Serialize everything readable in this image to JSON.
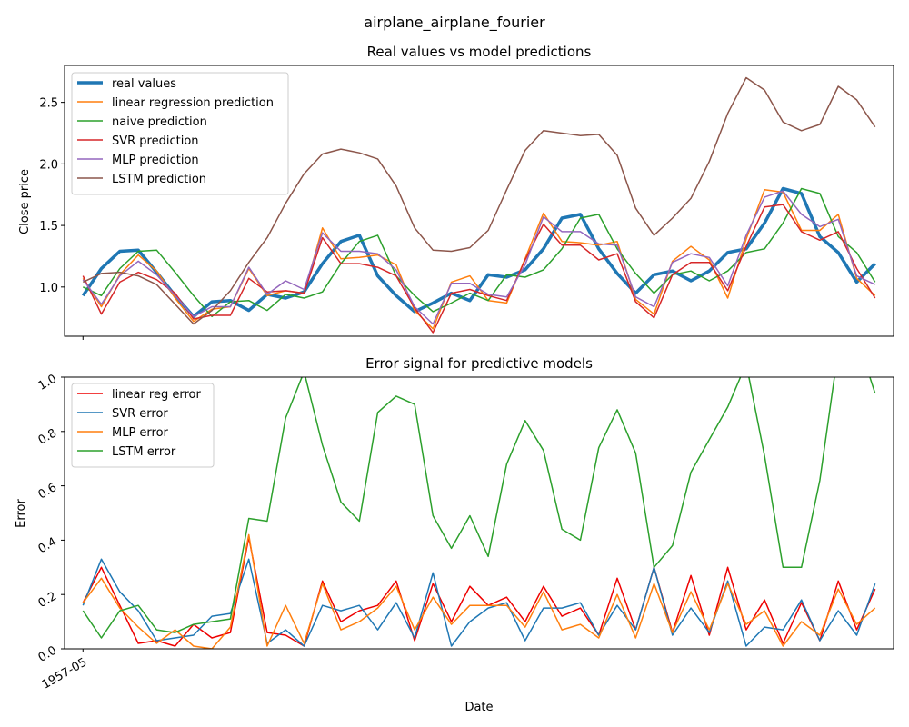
{
  "figure": {
    "suptitle": "airplane_airplane_fourier"
  },
  "chart_data": [
    {
      "type": "line",
      "title": "Real values vs model predictions",
      "xlabel": "",
      "ylabel": "Close price",
      "ylim": [
        0.6,
        2.8
      ],
      "yticks": [
        1.0,
        1.5,
        2.0,
        2.5
      ],
      "ytick_labels": [
        "1.0",
        "1.5",
        "2.0",
        "2.5"
      ],
      "xticks": [
        0
      ],
      "xtick_labels": [],
      "legend_position": "upper-left",
      "grid": false,
      "x": [
        0,
        1,
        2,
        3,
        4,
        5,
        6,
        7,
        8,
        9,
        10,
        11,
        12,
        13,
        14,
        15,
        16,
        17,
        18,
        19,
        20,
        21,
        22,
        23,
        24,
        25,
        26,
        27,
        28,
        29,
        30,
        31,
        32,
        33,
        34,
        35,
        36,
        37,
        38,
        39,
        40,
        41,
        42,
        43
      ],
      "series": [
        {
          "name": "real values",
          "color": "#1f77b4",
          "width": 3.5,
          "values": [
            0.93,
            1.15,
            1.29,
            1.3,
            1.12,
            0.93,
            0.76,
            0.88,
            0.89,
            0.81,
            0.94,
            0.91,
            0.96,
            1.19,
            1.37,
            1.42,
            1.09,
            0.93,
            0.8,
            0.87,
            0.95,
            0.89,
            1.1,
            1.08,
            1.14,
            1.31,
            1.56,
            1.59,
            1.31,
            1.11,
            0.95,
            1.1,
            1.13,
            1.05,
            1.13,
            1.28,
            1.31,
            1.52,
            1.8,
            1.76,
            1.41,
            1.28,
            1.04,
            1.19
          ]
        },
        {
          "name": "linear regression prediction",
          "color": "#ff7f0e",
          "width": 1.5,
          "values": [
            1.07,
            0.84,
            1.1,
            1.26,
            1.13,
            0.91,
            0.72,
            0.82,
            0.84,
            1.15,
            0.93,
            0.97,
            0.95,
            1.48,
            1.23,
            1.24,
            1.26,
            1.18,
            0.81,
            0.66,
            1.04,
            1.09,
            0.89,
            0.87,
            1.23,
            1.6,
            1.37,
            1.36,
            1.34,
            1.37,
            0.9,
            0.78,
            1.21,
            1.33,
            1.22,
            0.91,
            1.39,
            1.79,
            1.77,
            1.46,
            1.46,
            1.59,
            1.07,
            0.93
          ]
        },
        {
          "name": "naive prediction",
          "color": "#2ca02c",
          "width": 1.5,
          "values": [
            1.0,
            0.93,
            1.15,
            1.29,
            1.3,
            1.12,
            0.93,
            0.76,
            0.88,
            0.89,
            0.81,
            0.94,
            0.91,
            0.96,
            1.19,
            1.37,
            1.42,
            1.09,
            0.93,
            0.8,
            0.87,
            0.95,
            0.89,
            1.1,
            1.08,
            1.14,
            1.31,
            1.56,
            1.59,
            1.31,
            1.11,
            0.95,
            1.1,
            1.13,
            1.05,
            1.13,
            1.28,
            1.31,
            1.52,
            1.8,
            1.76,
            1.41,
            1.28,
            1.04
          ]
        },
        {
          "name": "SVR prediction",
          "color": "#d62728",
          "width": 1.5,
          "values": [
            1.09,
            0.78,
            1.04,
            1.12,
            1.06,
            0.95,
            0.74,
            0.77,
            0.77,
            1.07,
            0.96,
            0.97,
            0.95,
            1.4,
            1.19,
            1.19,
            1.16,
            1.09,
            0.83,
            0.63,
            0.95,
            0.98,
            0.93,
            0.89,
            1.22,
            1.51,
            1.34,
            1.34,
            1.22,
            1.27,
            0.88,
            0.75,
            1.1,
            1.2,
            1.2,
            0.97,
            1.33,
            1.65,
            1.67,
            1.45,
            1.38,
            1.45,
            1.15,
            0.91
          ]
        },
        {
          "name": "MLP prediction",
          "color": "#9467bd",
          "width": 1.5,
          "values": [
            1.06,
            0.86,
            1.09,
            1.21,
            1.1,
            0.93,
            0.76,
            0.84,
            0.84,
            1.16,
            0.94,
            1.05,
            0.98,
            1.44,
            1.29,
            1.29,
            1.27,
            1.14,
            0.84,
            0.7,
            1.03,
            1.03,
            0.94,
            0.92,
            1.18,
            1.57,
            1.45,
            1.45,
            1.35,
            1.34,
            0.92,
            0.84,
            1.2,
            1.27,
            1.24,
            1.01,
            1.42,
            1.73,
            1.78,
            1.59,
            1.49,
            1.55,
            1.09,
            1.02
          ]
        },
        {
          "name": "LSTM prediction",
          "color": "#8c564b",
          "width": 1.5,
          "values": [
            1.04,
            1.11,
            1.12,
            1.09,
            1.02,
            0.86,
            0.7,
            0.81,
            0.97,
            1.2,
            1.4,
            1.68,
            1.92,
            2.08,
            2.12,
            2.09,
            2.04,
            1.82,
            1.48,
            1.3,
            1.29,
            1.32,
            1.46,
            1.79,
            2.11,
            2.27,
            2.25,
            2.23,
            2.24,
            2.07,
            1.64,
            1.42,
            1.56,
            1.72,
            2.02,
            2.41,
            2.7,
            2.6,
            2.34,
            2.27,
            2.32,
            2.63,
            2.52,
            2.3
          ]
        }
      ]
    },
    {
      "type": "line",
      "title": "Error signal for predictive models",
      "xlabel": "Date",
      "ylabel": "Error",
      "ylim": [
        0.0,
        1.0
      ],
      "yticks": [
        0.0,
        0.2,
        0.4,
        0.6,
        0.8,
        1.0
      ],
      "ytick_labels": [
        "0.0",
        "0.2",
        "0.4",
        "0.6",
        "0.8",
        "1.0"
      ],
      "xticks": [
        0
      ],
      "xtick_labels": [
        "1957-05"
      ],
      "legend_position": "upper-left",
      "grid": false,
      "x": [
        0,
        1,
        2,
        3,
        4,
        5,
        6,
        7,
        8,
        9,
        10,
        11,
        12,
        13,
        14,
        15,
        16,
        17,
        18,
        19,
        20,
        21,
        22,
        23,
        24,
        25,
        26,
        27,
        28,
        29,
        30,
        31,
        32,
        33,
        34,
        35,
        36,
        37,
        38,
        39,
        40,
        41,
        42,
        43
      ],
      "series": [
        {
          "name": "linear reg error",
          "color": "#ee0000",
          "width": 1.5,
          "values": [
            0.17,
            0.3,
            0.16,
            0.02,
            0.03,
            0.01,
            0.09,
            0.04,
            0.06,
            0.41,
            0.06,
            0.05,
            0.01,
            0.25,
            0.1,
            0.14,
            0.16,
            0.25,
            0.03,
            0.24,
            0.1,
            0.23,
            0.16,
            0.19,
            0.1,
            0.23,
            0.12,
            0.15,
            0.05,
            0.26,
            0.07,
            0.3,
            0.06,
            0.27,
            0.05,
            0.3,
            0.07,
            0.18,
            0.02,
            0.17,
            0.03,
            0.25,
            0.07,
            0.22
          ]
        },
        {
          "name": "SVR error",
          "color": "#1f77b4",
          "width": 1.5,
          "values": [
            0.16,
            0.33,
            0.21,
            0.14,
            0.03,
            0.04,
            0.05,
            0.12,
            0.13,
            0.33,
            0.02,
            0.07,
            0.01,
            0.16,
            0.14,
            0.16,
            0.07,
            0.17,
            0.04,
            0.28,
            0.01,
            0.1,
            0.15,
            0.17,
            0.03,
            0.15,
            0.15,
            0.17,
            0.05,
            0.16,
            0.07,
            0.3,
            0.05,
            0.15,
            0.06,
            0.25,
            0.01,
            0.08,
            0.07,
            0.18,
            0.03,
            0.14,
            0.05,
            0.24
          ]
        },
        {
          "name": "MLP error",
          "color": "#ff7f0e",
          "width": 1.5,
          "values": [
            0.17,
            0.26,
            0.15,
            0.08,
            0.02,
            0.07,
            0.01,
            0.0,
            0.08,
            0.42,
            0.01,
            0.16,
            0.02,
            0.24,
            0.07,
            0.1,
            0.15,
            0.23,
            0.07,
            0.19,
            0.09,
            0.16,
            0.16,
            0.16,
            0.08,
            0.21,
            0.07,
            0.09,
            0.04,
            0.2,
            0.04,
            0.24,
            0.06,
            0.21,
            0.07,
            0.24,
            0.09,
            0.14,
            0.01,
            0.1,
            0.05,
            0.22,
            0.09,
            0.15
          ]
        },
        {
          "name": "LSTM error",
          "color": "#2ca02c",
          "width": 1.5,
          "values": [
            0.14,
            0.04,
            0.14,
            0.16,
            0.07,
            0.06,
            0.09,
            0.1,
            0.11,
            0.48,
            0.47,
            0.85,
            1.02,
            0.75,
            0.54,
            0.47,
            0.87,
            0.93,
            0.9,
            0.49,
            0.37,
            0.49,
            0.34,
            0.68,
            0.84,
            0.73,
            0.44,
            0.4,
            0.74,
            0.88,
            0.72,
            0.3,
            0.38,
            0.65,
            0.77,
            0.89,
            1.05,
            0.71,
            0.3,
            0.3,
            0.62,
            1.1,
            1.15,
            0.94
          ]
        }
      ]
    }
  ]
}
